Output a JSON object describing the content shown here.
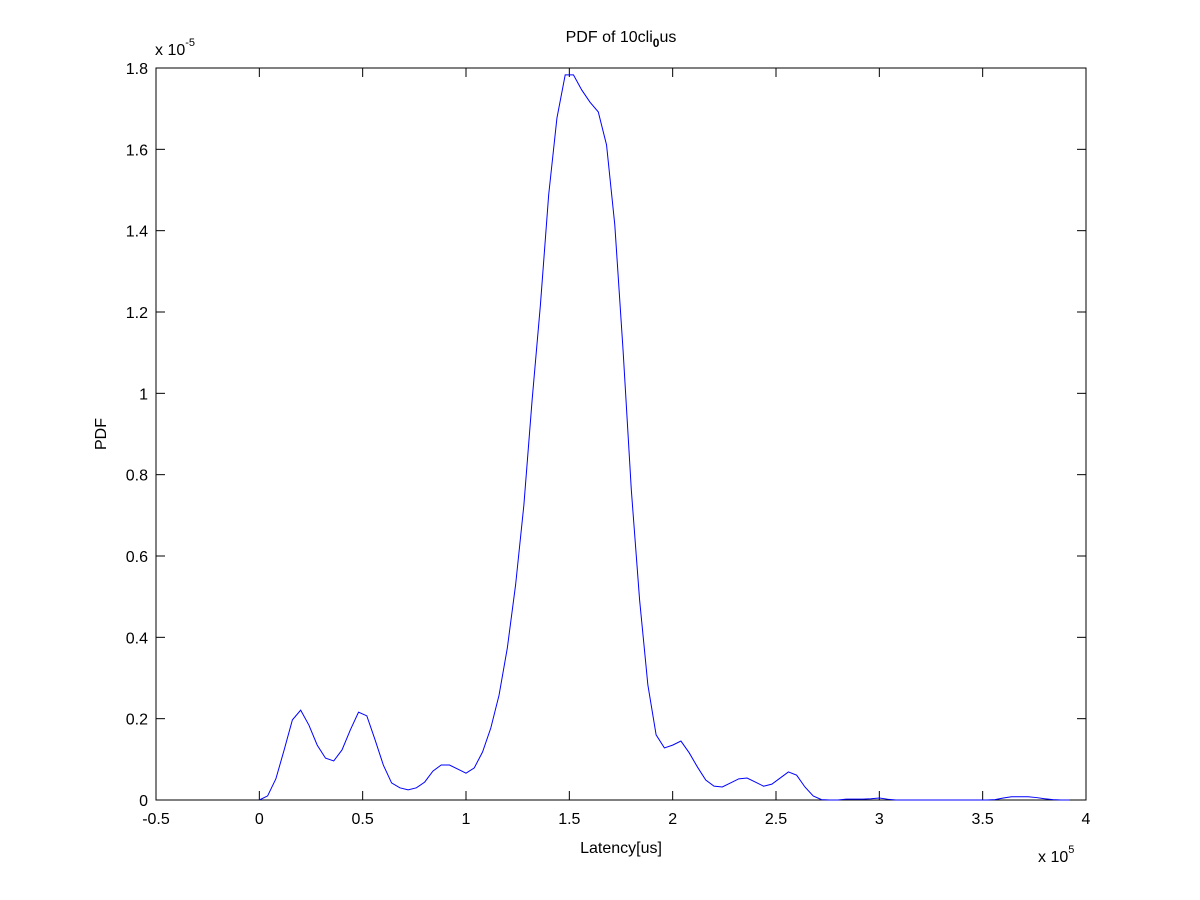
{
  "chart_data": {
    "type": "line",
    "title": [
      "PDF of 10cli",
      "0",
      "us"
    ],
    "x_label": "Latency[us]",
    "y_label": "PDF",
    "x_multiplier": {
      "base": "x 10",
      "exponent": "5"
    },
    "y_multiplier": {
      "base": "x 10",
      "exponent": "-5"
    },
    "xlim": [
      -0.5,
      4
    ],
    "ylim": [
      0,
      1.8
    ],
    "xticks": [
      -0.5,
      0,
      0.5,
      1,
      1.5,
      2,
      2.5,
      3,
      3.5,
      4
    ],
    "yticks": [
      0,
      0.2,
      0.4,
      0.6,
      0.8,
      1,
      1.2,
      1.4,
      1.6,
      1.8
    ],
    "grid": false,
    "x": [
      0,
      0.04,
      0.08,
      0.12,
      0.16,
      0.2,
      0.24,
      0.28,
      0.32,
      0.36,
      0.4,
      0.44,
      0.48,
      0.52,
      0.56,
      0.6,
      0.64,
      0.68,
      0.72,
      0.76,
      0.8,
      0.84,
      0.88,
      0.92,
      0.96,
      1,
      1.04,
      1.08,
      1.12,
      1.16,
      1.2,
      1.24,
      1.28,
      1.32,
      1.36,
      1.4,
      1.44,
      1.48,
      1.52,
      1.56,
      1.6,
      1.64,
      1.68,
      1.72,
      1.76,
      1.8,
      1.84,
      1.88,
      1.92,
      1.96,
      2,
      2.04,
      2.08,
      2.12,
      2.16,
      2.2,
      2.24,
      2.28,
      2.32,
      2.36,
      2.4,
      2.44,
      2.48,
      2.52,
      2.56,
      2.6,
      2.64,
      2.68,
      2.72,
      2.76,
      2.8,
      2.84,
      2.88,
      2.92,
      2.96,
      3,
      3.04,
      3.08,
      3.12,
      3.16,
      3.2,
      3.24,
      3.28,
      3.32,
      3.36,
      3.4,
      3.44,
      3.48,
      3.52,
      3.56,
      3.6,
      3.64,
      3.68,
      3.72,
      3.76,
      3.8,
      3.84,
      3.88,
      3.92
    ],
    "series": [
      {
        "name": "PDF",
        "color": "#0000ff",
        "values": [
          0,
          0.01,
          0.052,
          0.123,
          0.197,
          0.221,
          0.184,
          0.135,
          0.103,
          0.096,
          0.123,
          0.172,
          0.216,
          0.207,
          0.148,
          0.086,
          0.042,
          0.03,
          0.025,
          0.03,
          0.044,
          0.071,
          0.086,
          0.086,
          0.076,
          0.066,
          0.079,
          0.118,
          0.177,
          0.258,
          0.374,
          0.529,
          0.725,
          0.984,
          1.217,
          1.488,
          1.677,
          1.783,
          1.783,
          1.746,
          1.716,
          1.692,
          1.611,
          1.414,
          1.106,
          0.762,
          0.492,
          0.283,
          0.16,
          0.128,
          0.135,
          0.145,
          0.116,
          0.081,
          0.049,
          0.034,
          0.032,
          0.042,
          0.052,
          0.054,
          0.044,
          0.034,
          0.039,
          0.054,
          0.069,
          0.061,
          0.032,
          0.01,
          0.001,
          0,
          0,
          0.002,
          0.002,
          0.002,
          0.003,
          0.005,
          0.002,
          0,
          0,
          0,
          0,
          0,
          0,
          0,
          0,
          0,
          0,
          0,
          0,
          0.001,
          0.005,
          0.008,
          0.008,
          0.008,
          0.006,
          0.003,
          0.001,
          0,
          0
        ]
      }
    ]
  }
}
